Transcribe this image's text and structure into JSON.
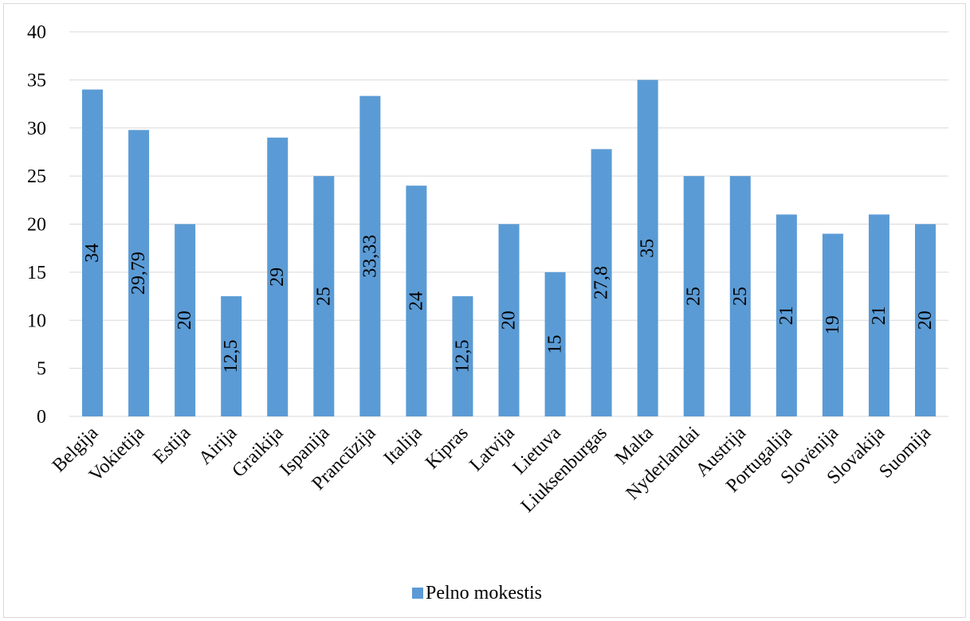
{
  "chart_data": {
    "type": "bar",
    "title": "",
    "xlabel": "",
    "ylabel": "",
    "ylim": [
      0,
      40
    ],
    "yticks": [
      0,
      5,
      10,
      15,
      20,
      25,
      30,
      35,
      40
    ],
    "ytick_labels": [
      "0",
      "5",
      "10",
      "15",
      "20",
      "25",
      "30",
      "35",
      "40"
    ],
    "grid": "horizontal",
    "legend_position": "bottom",
    "categories": [
      "Belgija",
      "Vokietija",
      "Estija",
      "Airija",
      "Graikija",
      "Ispanija",
      "Prancūzija",
      "Italija",
      "Kipras",
      "Latvija",
      "Lietuva",
      "Liuksenburgas",
      "Malta",
      "Nyderlandai",
      "Austrija",
      "Portugalija",
      "Slovėnija",
      "Slovakija",
      "Suomija"
    ],
    "series": [
      {
        "name": "Pelno mokestis",
        "color": "#5b9bd5",
        "values": [
          34,
          29.79,
          20,
          12.5,
          29,
          25,
          33.33,
          24,
          12.5,
          20,
          15,
          27.8,
          35,
          25,
          25,
          21,
          19,
          21,
          20
        ],
        "labels": [
          "34",
          "29,79",
          "20",
          "12,5",
          "29",
          "25",
          "33,33",
          "24",
          "12,5",
          "20",
          "15",
          "27,8",
          "35",
          "25",
          "25",
          "21",
          "19",
          "21",
          "20"
        ]
      }
    ]
  },
  "colors": {
    "bar": "#5b9bd5",
    "grid": "#d9d9d9",
    "border": "#d9d9d9"
  }
}
